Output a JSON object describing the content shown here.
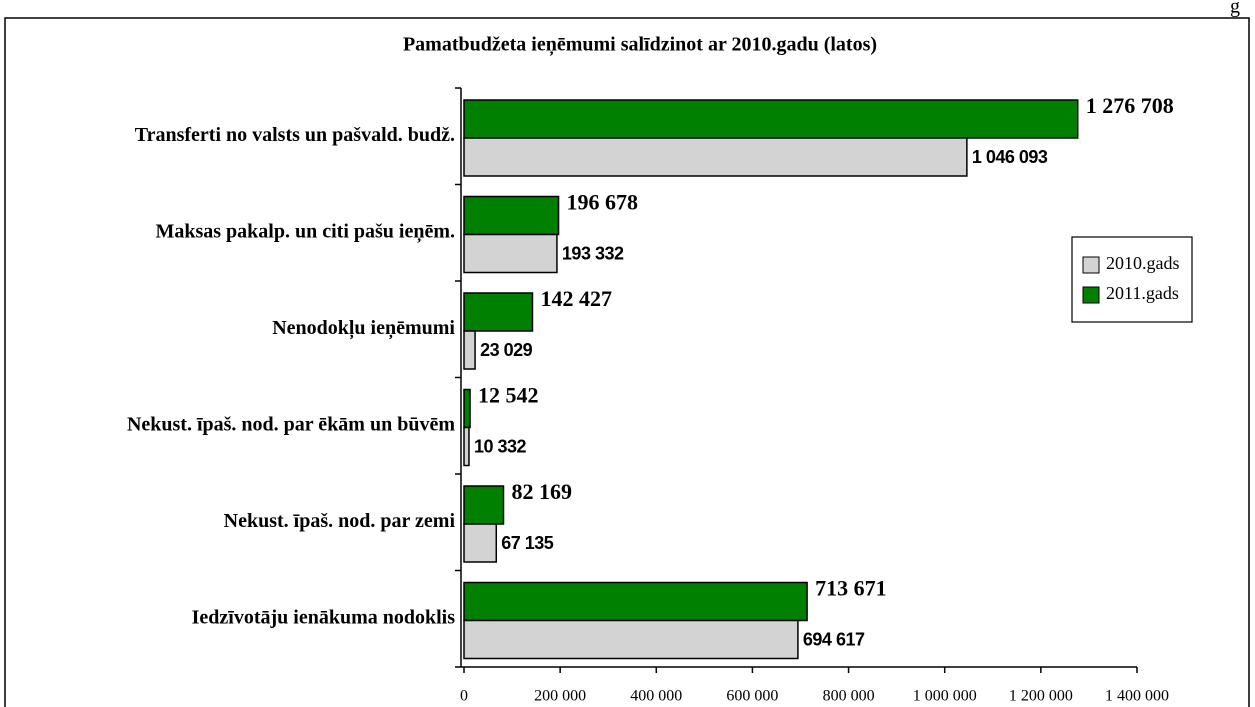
{
  "corner_note": "g",
  "chart_data": {
    "type": "bar",
    "orientation": "horizontal",
    "title": "Pamatbudžeta ieņēmumi salīdzinot ar 2010.gadu (latos)",
    "categories": [
      "Transferti no valsts un pašvald. budž.",
      "Maksas pakalp. un citi pašu ieņēm.",
      "Nenodokļu ieņēmumi",
      "Nekust.  īpaš. nod. par ēkām un būvēm",
      "Nekust. īpaš. nod. par zemi",
      "Iedzīvotāju ienākuma nodoklis"
    ],
    "series": [
      {
        "name": "2010.gads",
        "color": "#d3d3d3",
        "values": [
          1046093,
          193332,
          23029,
          10332,
          67135,
          694617
        ],
        "value_labels": [
          "1 046 093",
          "193 332",
          "23 029",
          "10 332",
          "67 135",
          "694 617"
        ]
      },
      {
        "name": "2011.gads",
        "color": "#008000",
        "values": [
          1276708,
          196678,
          142427,
          12542,
          82169,
          713671
        ],
        "value_labels": [
          "1 276 708",
          "196 678",
          "142 427",
          "12 542",
          "82 169",
          "713 671"
        ]
      }
    ],
    "xlim": [
      0,
      1400000
    ],
    "xticks": [
      0,
      {
        "value": 200000,
        "label": "200 000"
      },
      {
        "value": 400000,
        "label": "400 000"
      },
      {
        "value": 600000,
        "label": "600 000"
      },
      {
        "value": 800000,
        "label": "800 000"
      },
      {
        "value": 1000000,
        "label": "1 000 000"
      },
      {
        "value": 1200000,
        "label": "1 200 000"
      },
      {
        "value": 1400000,
        "label": "1 400 000"
      }
    ],
    "legend": "right"
  }
}
